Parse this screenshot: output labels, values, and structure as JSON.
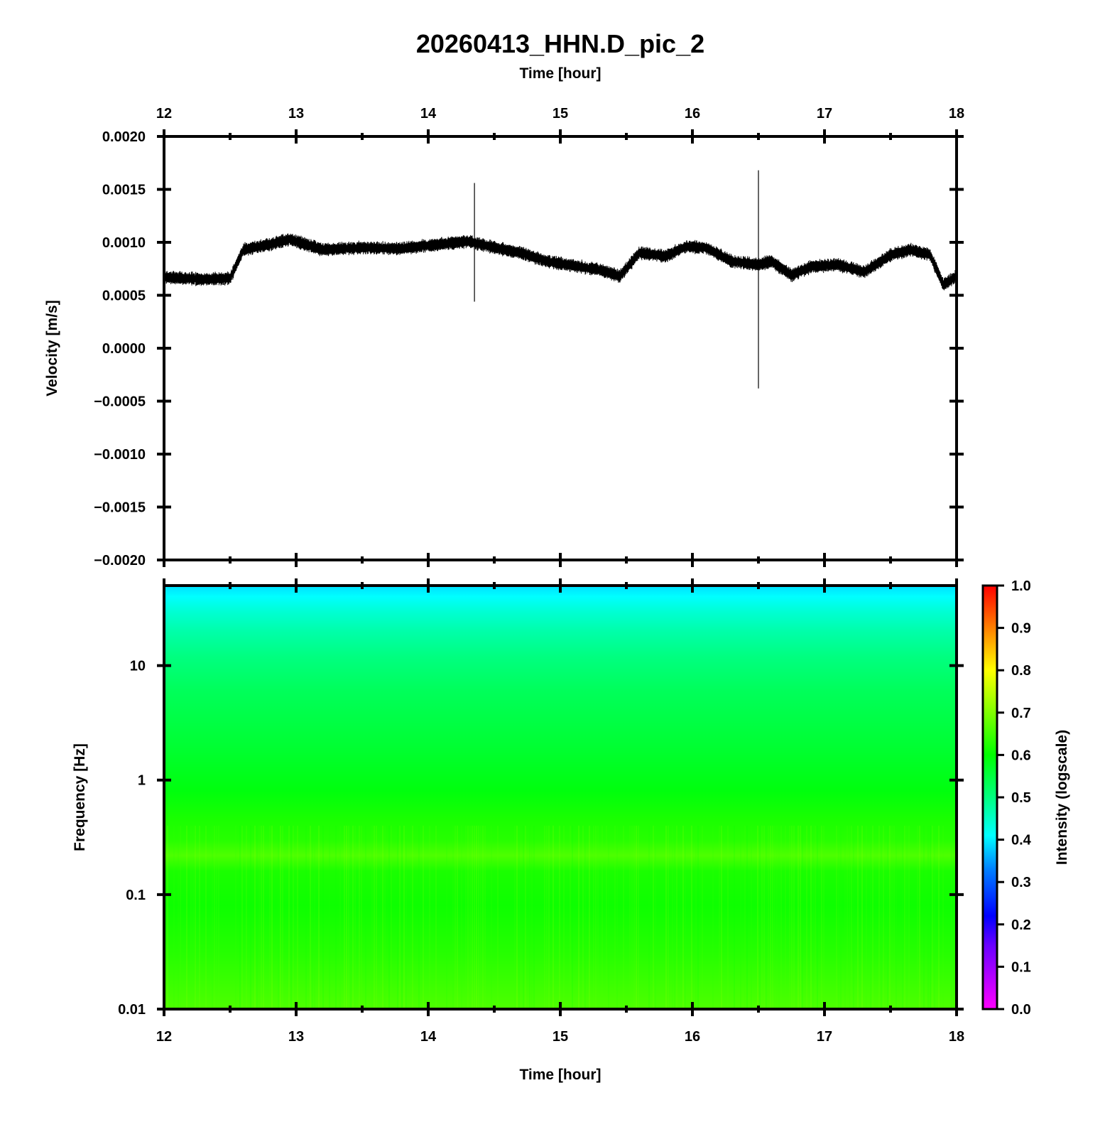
{
  "title": "20260413_HHN.D_pic_2",
  "chart_data": [
    {
      "type": "line",
      "panel": "waveform",
      "xlabel": "Time [hour]",
      "ylabel": "Velocity [m/s]",
      "xlim": [
        12,
        18
      ],
      "ylim": [
        -0.002,
        0.002
      ],
      "x_ticks": [
        "12",
        "13",
        "14",
        "15",
        "16",
        "17",
        "18"
      ],
      "y_ticks": [
        "0.0020",
        "0.0015",
        "0.0010",
        "0.0005",
        "0.0000",
        "−0.0005",
        "−0.0010",
        "−0.0015",
        "−0.0020"
      ],
      "y_tick_values": [
        0.002,
        0.0015,
        0.001,
        0.0005,
        0,
        -0.0005,
        -0.001,
        -0.0015,
        -0.002
      ],
      "grid": false,
      "line_color": "#000000",
      "baseline": {
        "x": [
          12.0,
          12.3,
          12.5,
          12.6,
          12.8,
          12.95,
          13.2,
          13.5,
          13.8,
          14.0,
          14.3,
          14.5,
          14.7,
          14.9,
          15.1,
          15.3,
          15.45,
          15.6,
          15.8,
          15.95,
          16.1,
          16.3,
          16.5,
          16.6,
          16.75,
          16.9,
          17.1,
          17.3,
          17.5,
          17.65,
          17.8,
          17.9,
          18.0
        ],
        "y": [
          0.00067,
          0.00065,
          0.00066,
          0.00093,
          0.00098,
          0.00103,
          0.00093,
          0.00095,
          0.00094,
          0.00097,
          0.00101,
          0.00095,
          0.0009,
          0.00082,
          0.00078,
          0.00074,
          0.00068,
          0.0009,
          0.00087,
          0.00096,
          0.00095,
          0.00082,
          0.00079,
          0.00082,
          0.00069,
          0.00077,
          0.00079,
          0.00072,
          0.00088,
          0.00093,
          0.00088,
          0.0006,
          0.00068
        ]
      },
      "noise_amplitude": 7e-05,
      "spikes": [
        {
          "x": 14.35,
          "ymax": 0.00156,
          "ymin": 0.00044
        },
        {
          "x": 16.5,
          "ymax": 0.00168,
          "ymin": -0.00038
        }
      ]
    },
    {
      "type": "heatmap",
      "panel": "spectrogram",
      "xlabel": "Time [hour]",
      "ylabel": "Frequency [Hz]",
      "xlim": [
        12,
        18
      ],
      "ylim": [
        0.01,
        50
      ],
      "y_scale": "log",
      "x_ticks": [
        "12",
        "13",
        "14",
        "15",
        "16",
        "17",
        "18"
      ],
      "y_ticks": [
        "10",
        "1",
        "0.1",
        "0.01"
      ],
      "y_tick_values": [
        10,
        1,
        0.1,
        0.01
      ],
      "intensity_profile": {
        "freq": [
          50,
          40,
          30,
          20,
          12,
          6,
          2,
          0.8,
          0.45,
          0.3,
          0.22,
          0.16,
          0.08,
          0.03,
          0.01
        ],
        "intensity": [
          0.39,
          0.41,
          0.44,
          0.47,
          0.5,
          0.53,
          0.56,
          0.59,
          0.62,
          0.63,
          0.66,
          0.62,
          0.61,
          0.63,
          0.66
        ]
      },
      "colorbar": {
        "label": "Intensity (logscale)",
        "range": [
          0,
          1
        ],
        "ticks": [
          "1.0",
          "0.9",
          "0.8",
          "0.7",
          "0.6",
          "0.5",
          "0.4",
          "0.3",
          "0.2",
          "0.1",
          "0.0"
        ],
        "colors": [
          {
            "v": 0.0,
            "color": "#ff00ff"
          },
          {
            "v": 0.15,
            "color": "#6a00ff"
          },
          {
            "v": 0.22,
            "color": "#0000ff"
          },
          {
            "v": 0.33,
            "color": "#0080ff"
          },
          {
            "v": 0.41,
            "color": "#00ffff"
          },
          {
            "v": 0.5,
            "color": "#00ff80"
          },
          {
            "v": 0.6,
            "color": "#00ff00"
          },
          {
            "v": 0.7,
            "color": "#80ff00"
          },
          {
            "v": 0.8,
            "color": "#ffff00"
          },
          {
            "v": 0.9,
            "color": "#ff8000"
          },
          {
            "v": 1.0,
            "color": "#ff0000"
          }
        ]
      }
    }
  ]
}
